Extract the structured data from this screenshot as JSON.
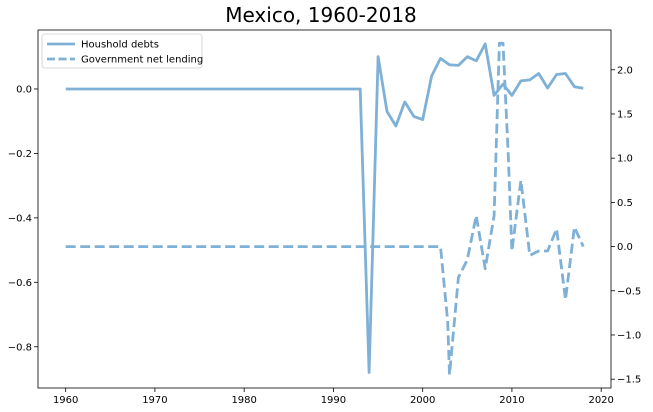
{
  "chart_data": {
    "type": "line",
    "title": "Mexico, 1960-2018",
    "xlabel": "",
    "ylabel": "",
    "y2label": "",
    "xlim": [
      1956.9,
      2021.1
    ],
    "ylim_left": [
      -0.928,
      0.183
    ],
    "ylim_right": [
      -1.6,
      2.45
    ],
    "x_ticks": [
      1960,
      1970,
      1980,
      1990,
      2000,
      2010,
      2020
    ],
    "y_left_ticks": [
      0.0,
      -0.2,
      -0.4,
      -0.6,
      -0.8
    ],
    "y_left_tick_labels": [
      "0.0",
      "−0.2",
      "−0.4",
      "−0.6",
      "−0.8"
    ],
    "y_right_ticks": [
      2.0,
      1.5,
      1.0,
      0.5,
      0.0,
      -0.5,
      -1.0,
      -1.5
    ],
    "y_right_tick_labels": [
      "2.0",
      "1.5",
      "1.0",
      "0.5",
      "0.0",
      "−0.5",
      "−1.0",
      "−1.5"
    ],
    "grid": false,
    "legend_position": "upper-left",
    "color": "#7fb0d6",
    "series": [
      {
        "name": "Houshold debts",
        "axis": "left",
        "style": "solid",
        "x": [
          1960,
          1993,
          1994,
          1995,
          1996,
          1997,
          1998,
          1999,
          2000,
          2001,
          2002,
          2003,
          2004,
          2005,
          2006,
          2007,
          2008,
          2009,
          2010,
          2011,
          2012,
          2013,
          2014,
          2015,
          2016,
          2017,
          2018
        ],
        "y": [
          0.0,
          0.0,
          -0.88,
          0.1,
          -0.07,
          -0.115,
          -0.04,
          -0.085,
          -0.095,
          0.04,
          0.095,
          0.075,
          0.073,
          0.1,
          0.087,
          0.14,
          -0.02,
          0.015,
          -0.02,
          0.025,
          0.028,
          0.048,
          0.003,
          0.045,
          0.048,
          0.007,
          0.002
        ]
      },
      {
        "name": "Government net lending",
        "axis": "right",
        "style": "dashed",
        "x": [
          1960,
          2002,
          2002.8,
          2003,
          2004,
          2005,
          2006,
          2007,
          2008,
          2008.6,
          2009,
          2009.6,
          2010,
          2011,
          2012,
          2013,
          2014,
          2015,
          2016,
          2017,
          2018
        ],
        "y": [
          0.0,
          0.0,
          -0.85,
          -1.45,
          -0.35,
          -0.15,
          0.35,
          -0.25,
          0.35,
          2.3,
          2.3,
          1.0,
          -0.05,
          0.75,
          -0.1,
          -0.05,
          -0.05,
          0.2,
          -0.6,
          0.22,
          0.0
        ]
      }
    ]
  }
}
